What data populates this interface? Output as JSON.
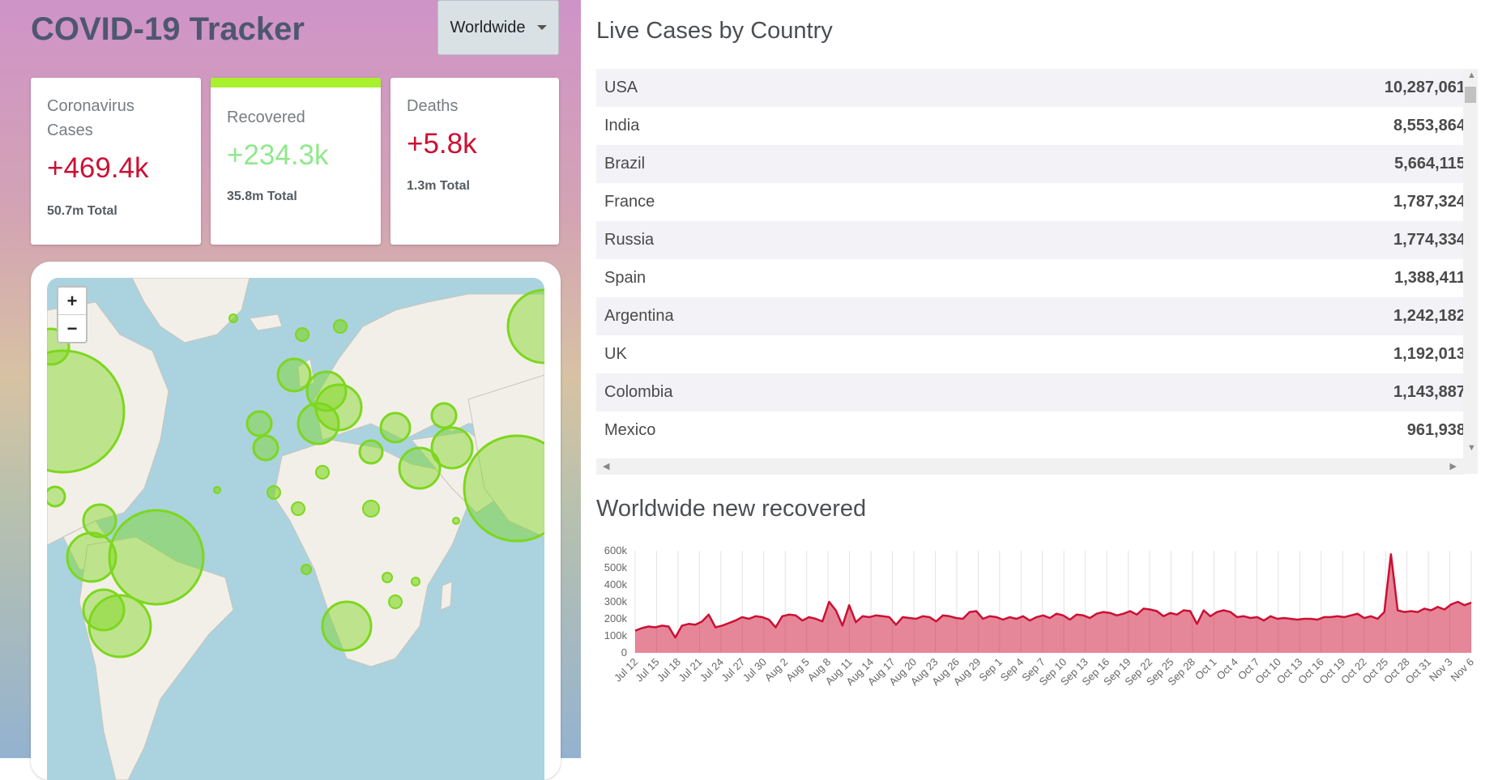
{
  "app": {
    "title": "COVID-19 Tracker",
    "country_select": {
      "selected": "Worldwide"
    }
  },
  "stats": {
    "cases": {
      "label": "Coronavirus Cases",
      "today": "+469.4k",
      "total": "50.7m Total",
      "color": "#cc1034"
    },
    "recovered": {
      "label": "Recovered",
      "today": "+234.3k",
      "total": "35.8m Total",
      "color": "#7dd71d",
      "active_bar": "#a9f02d"
    },
    "deaths": {
      "label": "Deaths",
      "today": "+5.8k",
      "total": "1.3m Total",
      "color": "#cc1034"
    }
  },
  "map": {
    "zoom_in": "+",
    "zoom_out": "−",
    "circle_color": "#7dd71d"
  },
  "table": {
    "title": "Live Cases by Country",
    "rows": [
      {
        "country": "USA",
        "cases": "10,287,061"
      },
      {
        "country": "India",
        "cases": "8,553,864"
      },
      {
        "country": "Brazil",
        "cases": "5,664,115"
      },
      {
        "country": "France",
        "cases": "1,787,324"
      },
      {
        "country": "Russia",
        "cases": "1,774,334"
      },
      {
        "country": "Spain",
        "cases": "1,388,411"
      },
      {
        "country": "Argentina",
        "cases": "1,242,182"
      },
      {
        "country": "UK",
        "cases": "1,192,013"
      },
      {
        "country": "Colombia",
        "cases": "1,143,887"
      },
      {
        "country": "Mexico",
        "cases": "961,938"
      }
    ]
  },
  "chart_data": {
    "type": "area",
    "title": "Worldwide new recovered",
    "xlabel": "",
    "ylabel": "",
    "ylim": [
      0,
      600000
    ],
    "yticks": [
      "0",
      "100k",
      "200k",
      "300k",
      "400k",
      "500k",
      "600k"
    ],
    "xticks": [
      "Jul 12",
      "Jul 15",
      "Jul 18",
      "Jul 21",
      "Jul 24",
      "Jul 27",
      "Jul 30",
      "Aug 2",
      "Aug 5",
      "Aug 8",
      "Aug 11",
      "Aug 14",
      "Aug 17",
      "Aug 20",
      "Aug 23",
      "Aug 26",
      "Aug 29",
      "Sep 1",
      "Sep 4",
      "Sep 7",
      "Sep 10",
      "Sep 13",
      "Sep 16",
      "Sep 19",
      "Sep 22",
      "Sep 25",
      "Sep 28",
      "Oct 1",
      "Oct 4",
      "Oct 7",
      "Oct 10",
      "Oct 13",
      "Oct 16",
      "Oct 19",
      "Oct 22",
      "Oct 25",
      "Oct 28",
      "Oct 31",
      "Nov 3",
      "Nov 6"
    ],
    "grid": true,
    "line_color": "#cc1034",
    "fill_color": "rgba(204,16,52,0.5)",
    "series": [
      {
        "values": [
          130000,
          145000,
          155000,
          150000,
          160000,
          155000,
          90000,
          160000,
          170000,
          165000,
          185000,
          225000,
          150000,
          160000,
          175000,
          190000,
          210000,
          200000,
          215000,
          210000,
          195000,
          150000,
          215000,
          225000,
          220000,
          190000,
          210000,
          200000,
          185000,
          300000,
          250000,
          160000,
          280000,
          180000,
          215000,
          210000,
          220000,
          215000,
          210000,
          165000,
          210000,
          205000,
          200000,
          215000,
          210000,
          185000,
          220000,
          215000,
          205000,
          200000,
          240000,
          245000,
          200000,
          215000,
          210000,
          195000,
          210000,
          200000,
          215000,
          190000,
          210000,
          220000,
          205000,
          230000,
          220000,
          195000,
          225000,
          220000,
          205000,
          230000,
          240000,
          235000,
          220000,
          230000,
          245000,
          225000,
          260000,
          255000,
          245000,
          215000,
          235000,
          225000,
          250000,
          245000,
          170000,
          250000,
          215000,
          240000,
          250000,
          240000,
          210000,
          215000,
          205000,
          210000,
          190000,
          215000,
          200000,
          205000,
          200000,
          195000,
          200000,
          200000,
          195000,
          210000,
          210000,
          215000,
          210000,
          220000,
          230000,
          205000,
          215000,
          200000,
          240000,
          580000,
          250000,
          240000,
          245000,
          240000,
          260000,
          250000,
          270000,
          255000,
          285000,
          300000,
          280000,
          295000
        ]
      }
    ]
  }
}
